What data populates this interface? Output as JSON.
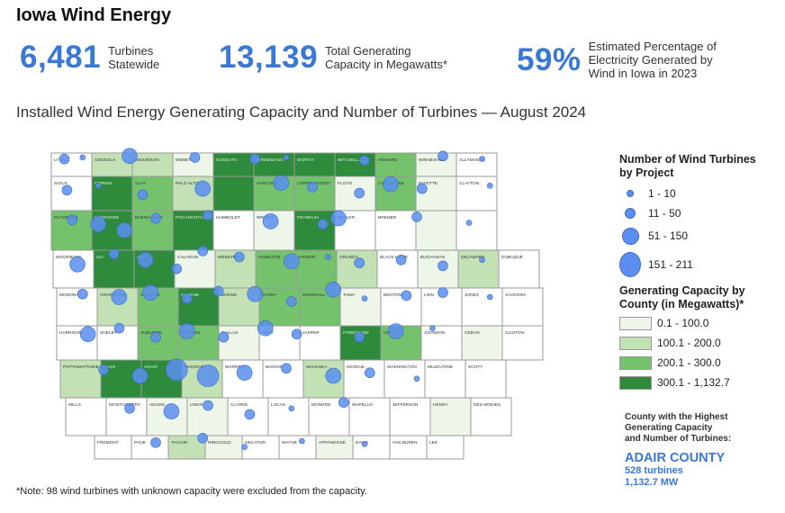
{
  "title": "Iowa Wind Energy",
  "stats": [
    {
      "value": "6,481",
      "label_1": "Turbines",
      "label_2": "Statewide",
      "label_3": ""
    },
    {
      "value": "13,139",
      "label_1": "Total Generating",
      "label_2": "Capacity in Megawatts*",
      "label_3": ""
    },
    {
      "value": "59%",
      "label_1": "Estimated Percentage of",
      "label_2": "Electricity Generated by",
      "label_3": "Wind in Iowa in 2023"
    }
  ],
  "subtitle": "Installed Wind Energy Generating Capacity and Number of Turbines — August 2024",
  "colors": {
    "accent": "#3a78d6",
    "bubble": "#5b8ef0",
    "class_0": "#ffffff",
    "class_1": "#eef6ea",
    "class_2": "#c2e1b4",
    "class_3": "#74c26b",
    "class_4": "#2e8b3c"
  },
  "legend_turbines": {
    "title_1": "Number of Wind Turbines",
    "title_2": "by Project",
    "items": [
      "1 - 10",
      "11 - 50",
      "51 - 150",
      "151 - 211"
    ]
  },
  "legend_capacity": {
    "title_1": "Generating Capacity by",
    "title_2": "County (in Megawatts)*",
    "items": [
      "0.1 - 100.0",
      "100.1 - 200.0",
      "200.1 - 300.0",
      "300.1 - 1,132.7"
    ]
  },
  "callout": {
    "line_1": "County with the Highest",
    "line_2": "Generating Capacity",
    "line_3": "and Number of Turbines:",
    "county": "ADAIR COUNTY",
    "turbines": "528 turbines",
    "capacity": "1,132.7 MW"
  },
  "note": "*Note:  98 wind turbines with unknown capacity were excluded from the capacity.",
  "counties": [
    [
      "LYON",
      0
    ],
    [
      "OSCEOLA",
      2
    ],
    [
      "DICKINSON",
      2
    ],
    [
      "EMMET",
      1
    ],
    [
      "KOSSUTH",
      4
    ],
    [
      "WINNEBAGO",
      4
    ],
    [
      "WORTH",
      4
    ],
    [
      "MITCHELL",
      4
    ],
    [
      "HOWARD",
      3
    ],
    [
      "WINNESHIEK",
      1
    ],
    [
      "ALLAMAKEE",
      0
    ],
    [
      "SIOUX",
      0
    ],
    [
      "O'BRIEN",
      4
    ],
    [
      "CLAY",
      3
    ],
    [
      "PALO ALTO",
      2
    ],
    [
      "",
      4
    ],
    [
      "HANCOCK",
      3
    ],
    [
      "CERRO GORDO",
      3
    ],
    [
      "FLOYD",
      1
    ],
    [
      "CHICKASAW",
      3
    ],
    [
      "FAYETTE",
      1
    ],
    [
      "CLAYTON",
      0
    ],
    [
      "PLYMOUTH",
      3
    ],
    [
      "CHEROKEE",
      4
    ],
    [
      "BUENA VISTA",
      3
    ],
    [
      "POCAHONTAS",
      4
    ],
    [
      "HUMBOLDT",
      0
    ],
    [
      "WRIGHT",
      1
    ],
    [
      "FRANKLIN",
      4
    ],
    [
      "BUTLER",
      0
    ],
    [
      "BREMER",
      0
    ],
    [
      "",
      1
    ],
    [
      "",
      0
    ],
    [
      "WOODBURY",
      0
    ],
    [
      "IDA",
      4
    ],
    [
      "SAC",
      4
    ],
    [
      "CALHOUN",
      1
    ],
    [
      "WEBSTER",
      2
    ],
    [
      "HAMILTON",
      3
    ],
    [
      "HARDIN",
      3
    ],
    [
      "GRUNDY",
      2
    ],
    [
      "BLACK HAWK",
      0
    ],
    [
      "BUCHANAN",
      1
    ],
    [
      "DELAWARE",
      2
    ],
    [
      "DUBUQUE",
      0
    ],
    [
      "MONONA",
      0
    ],
    [
      "CRAWFORD",
      2
    ],
    [
      "CARROLL",
      3
    ],
    [
      "GREENE",
      4
    ],
    [
      "BOONE",
      2
    ],
    [
      "STORY",
      3
    ],
    [
      "MARSHALL",
      3
    ],
    [
      "TAMA",
      1
    ],
    [
      "BENTON",
      0
    ],
    [
      "LINN",
      0
    ],
    [
      "JONES",
      0
    ],
    [
      "JACKSON",
      0
    ],
    [
      "HARRISON",
      0
    ],
    [
      "SHELBY",
      0
    ],
    [
      "AUDUBON",
      3
    ],
    [
      "GUTHRIE",
      3
    ],
    [
      "DALLAS",
      1
    ],
    [
      "POLK",
      0
    ],
    [
      "JASPER",
      0
    ],
    [
      "POWESHIEK",
      4
    ],
    [
      "IOWA",
      3
    ],
    [
      "JOHNSON",
      0
    ],
    [
      "CEDAR",
      1
    ],
    [
      "CLINTON",
      0
    ],
    [
      "POTTAWATTAMIE",
      2
    ],
    [
      "CASS",
      4
    ],
    [
      "ADAIR",
      4
    ],
    [
      "MADISON",
      2
    ],
    [
      "WARREN",
      0
    ],
    [
      "MARION",
      0
    ],
    [
      "MAHASKA",
      2
    ],
    [
      "KEOKUK",
      0
    ],
    [
      "WASHINGTON",
      0
    ],
    [
      "MUSCATINE",
      0
    ],
    [
      "SCOTT",
      0
    ],
    [
      "MILLS",
      0
    ],
    [
      "MONTGOMERY",
      0
    ],
    [
      "ADAMS",
      1
    ],
    [
      "UNION",
      1
    ],
    [
      "CLARKE",
      0
    ],
    [
      "LUCAS",
      0
    ],
    [
      "MONROE",
      0
    ],
    [
      "WAPELLO",
      0
    ],
    [
      "JEFFERSON",
      0
    ],
    [
      "HENRY",
      1
    ],
    [
      "DES MOINES",
      0
    ],
    [
      "FREMONT",
      0
    ],
    [
      "PAGE",
      0
    ],
    [
      "TAYLOR",
      2
    ],
    [
      "RINGGOLD",
      1
    ],
    [
      "DECATUR",
      0
    ],
    [
      "WAYNE",
      0
    ],
    [
      "APPANOOSE",
      1
    ],
    [
      "DAVIS",
      0
    ],
    [
      "VAN BUREN",
      0
    ],
    [
      "LEE",
      0
    ]
  ],
  "projects": [
    [
      5,
      4,
      2
    ],
    [
      12,
      3,
      1
    ],
    [
      30,
      2,
      3
    ],
    [
      55,
      3,
      2
    ],
    [
      78,
      4,
      2
    ],
    [
      90,
      3,
      1
    ],
    [
      120,
      5,
      2
    ],
    [
      150,
      2,
      2
    ],
    [
      165,
      4,
      1
    ],
    [
      6,
      25,
      2
    ],
    [
      18,
      22,
      1
    ],
    [
      35,
      28,
      2
    ],
    [
      58,
      24,
      3
    ],
    [
      88,
      20,
      3
    ],
    [
      100,
      23,
      2
    ],
    [
      118,
      27,
      2
    ],
    [
      130,
      21,
      3
    ],
    [
      142,
      24,
      2
    ],
    [
      168,
      22,
      1
    ],
    [
      8,
      45,
      2
    ],
    [
      18,
      48,
      3
    ],
    [
      28,
      52,
      3
    ],
    [
      40,
      44,
      2
    ],
    [
      60,
      42,
      2
    ],
    [
      84,
      46,
      3
    ],
    [
      104,
      48,
      2
    ],
    [
      110,
      44,
      3
    ],
    [
      140,
      43,
      2
    ],
    [
      160,
      47,
      1
    ],
    [
      10,
      75,
      3
    ],
    [
      24,
      68,
      2
    ],
    [
      36,
      72,
      3
    ],
    [
      48,
      78,
      2
    ],
    [
      58,
      66,
      2
    ],
    [
      72,
      70,
      2
    ],
    [
      92,
      73,
      3
    ],
    [
      106,
      70,
      1
    ],
    [
      118,
      74,
      2
    ],
    [
      134,
      72,
      2
    ],
    [
      150,
      76,
      2
    ],
    [
      165,
      72,
      1
    ],
    [
      12,
      95,
      2
    ],
    [
      26,
      97,
      3
    ],
    [
      38,
      94,
      3
    ],
    [
      52,
      98,
      2
    ],
    [
      64,
      93,
      2
    ],
    [
      78,
      95,
      3
    ],
    [
      92,
      100,
      2
    ],
    [
      108,
      92,
      3
    ],
    [
      120,
      98,
      1
    ],
    [
      136,
      96,
      2
    ],
    [
      150,
      94,
      2
    ],
    [
      168,
      97,
      1
    ],
    [
      14,
      122,
      3
    ],
    [
      26,
      118,
      2
    ],
    [
      40,
      124,
      2
    ],
    [
      52,
      120,
      3
    ],
    [
      66,
      124,
      2
    ],
    [
      82,
      118,
      3
    ],
    [
      94,
      122,
      2
    ],
    [
      118,
      124,
      2
    ],
    [
      132,
      120,
      3
    ],
    [
      146,
      118,
      1
    ],
    [
      20,
      146,
      2
    ],
    [
      34,
      150,
      3
    ],
    [
      48,
      146,
      4
    ],
    [
      60,
      150,
      4
    ],
    [
      74,
      148,
      3
    ],
    [
      90,
      145,
      2
    ],
    [
      108,
      150,
      3
    ],
    [
      122,
      148,
      2
    ],
    [
      140,
      152,
      1
    ],
    [
      30,
      172,
      2
    ],
    [
      46,
      174,
      3
    ],
    [
      60,
      170,
      2
    ],
    [
      76,
      176,
      2
    ],
    [
      92,
      172,
      1
    ],
    [
      112,
      168,
      2
    ],
    [
      40,
      195,
      2
    ],
    [
      58,
      192,
      2
    ],
    [
      74,
      198,
      1
    ],
    [
      96,
      194,
      1
    ],
    [
      120,
      196,
      1
    ]
  ]
}
